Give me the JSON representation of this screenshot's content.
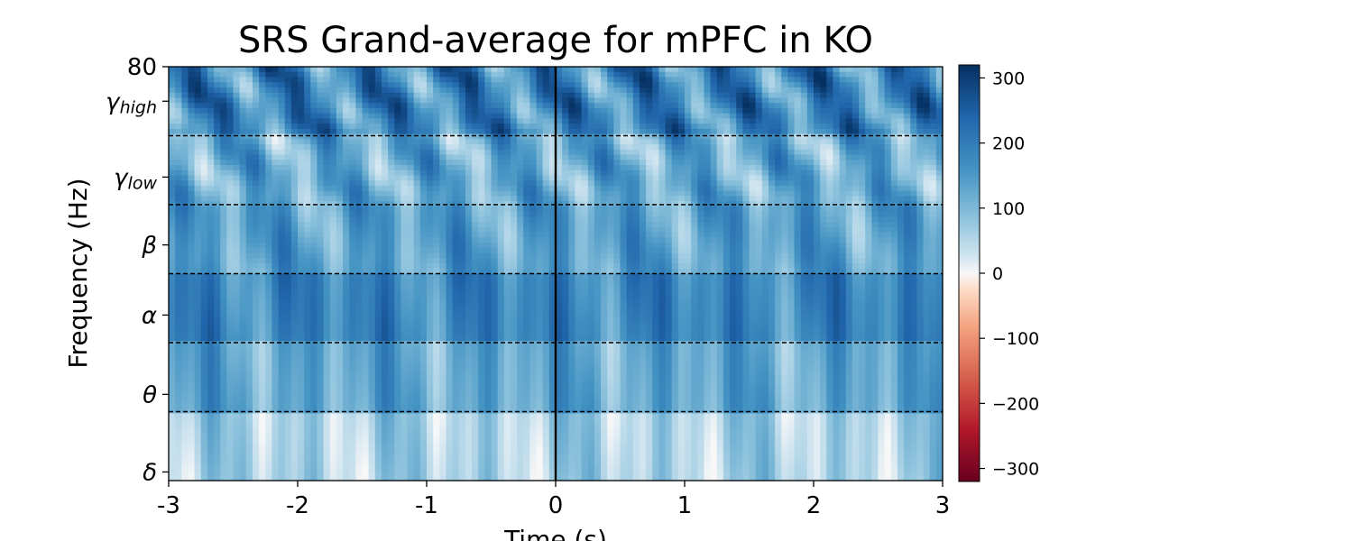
{
  "chart_data": {
    "type": "heatmap",
    "title": "SRS Grand-average for mPFC in KO",
    "xlabel": "Time (s)",
    "ylabel": "Frequency (Hz)",
    "xlim": [
      -3,
      3
    ],
    "ylim": [
      0,
      80
    ],
    "x_ticks": [
      {
        "value": -3,
        "label": "-3"
      },
      {
        "value": -2,
        "label": "-2"
      },
      {
        "value": -1,
        "label": "-1"
      },
      {
        "value": 0,
        "label": "0"
      },
      {
        "value": 1,
        "label": "1"
      },
      {
        "value": 2,
        "label": "2"
      },
      {
        "value": 3,
        "label": "3"
      }
    ],
    "y_ticks": [
      {
        "value": 80,
        "label": "80",
        "sub": ""
      },
      {
        "value": 65,
        "label": "γ",
        "sub": "high"
      },
      {
        "value": 35,
        "label": "γ",
        "sub": "low"
      },
      {
        "value": 18,
        "label": "β",
        "sub": ""
      },
      {
        "value": 10,
        "label": "α",
        "sub": ""
      },
      {
        "value": 5,
        "label": "θ",
        "sub": ""
      },
      {
        "value": 0.5,
        "label": "δ",
        "sub": ""
      }
    ],
    "band_boundaries_hz": [
      4,
      8,
      13,
      25,
      50
    ],
    "event_line_time": 0,
    "colormap": "RdBu_r",
    "color_range": [
      -320,
      320
    ],
    "colorbar_ticks": [
      {
        "value": 300,
        "label": "300"
      },
      {
        "value": 200,
        "label": "200"
      },
      {
        "value": 100,
        "label": "100"
      },
      {
        "value": 0,
        "label": "0"
      },
      {
        "value": -100,
        "label": "−100"
      },
      {
        "value": -200,
        "label": "−200"
      },
      {
        "value": -300,
        "label": "−300"
      }
    ],
    "band_mean_values": [
      {
        "band": "δ",
        "range_hz": [
          0,
          4
        ],
        "mean": 60
      },
      {
        "band": "θ",
        "range_hz": [
          4,
          8
        ],
        "mean": 130
      },
      {
        "band": "α",
        "range_hz": [
          8,
          13
        ],
        "mean": 185
      },
      {
        "band": "β",
        "range_hz": [
          13,
          25
        ],
        "mean": 140
      },
      {
        "band": "γ_low",
        "range_hz": [
          25,
          50
        ],
        "mean": 125
      },
      {
        "band": "γ_high",
        "range_hz": [
          50,
          80
        ],
        "mean": 185
      }
    ]
  }
}
